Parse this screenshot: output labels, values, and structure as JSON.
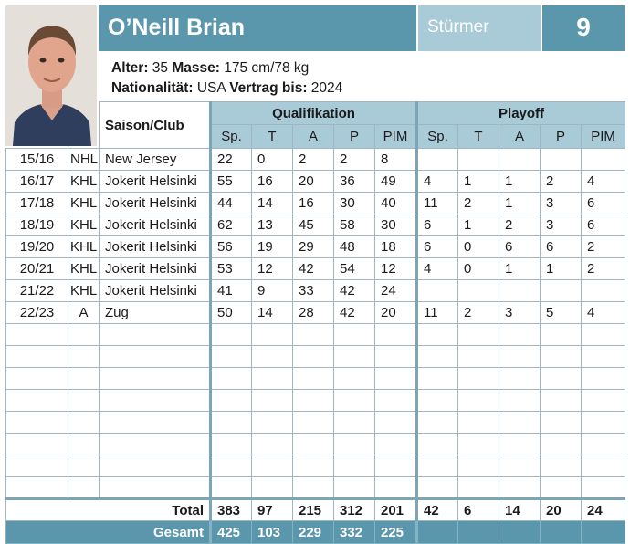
{
  "player": {
    "name": "O’Neill Brian",
    "position": "Stürmer",
    "number": "9",
    "age_label": "Alter:",
    "age": "35",
    "mass_label": "Masse:",
    "mass": "175 cm/78 kg",
    "nationality_label": "Nationalität:",
    "nationality": "USA",
    "contract_label": "Vertrag bis:",
    "contract": "2024"
  },
  "headers": {
    "saison_club": "Saison/Club",
    "qualifikation": "Qualifikation",
    "playoff": "Playoff",
    "cols": [
      "Sp.",
      "T",
      "A",
      "P",
      "PIM"
    ]
  },
  "rows": [
    {
      "season": "15/16",
      "league": "NHL",
      "club": "New Jersey",
      "q": [
        "22",
        "0",
        "2",
        "2",
        "8"
      ],
      "p": [
        "",
        "",
        "",
        "",
        ""
      ]
    },
    {
      "season": "16/17",
      "league": "KHL",
      "club": "Jokerit Helsinki",
      "q": [
        "55",
        "16",
        "20",
        "36",
        "49"
      ],
      "p": [
        "4",
        "1",
        "1",
        "2",
        "4"
      ]
    },
    {
      "season": "17/18",
      "league": "KHL",
      "club": "Jokerit Helsinki",
      "q": [
        "44",
        "14",
        "16",
        "30",
        "40"
      ],
      "p": [
        "11",
        "2",
        "1",
        "3",
        "6"
      ]
    },
    {
      "season": "18/19",
      "league": "KHL",
      "club": "Jokerit Helsinki",
      "q": [
        "62",
        "13",
        "45",
        "58",
        "30"
      ],
      "p": [
        "6",
        "1",
        "2",
        "3",
        "6"
      ]
    },
    {
      "season": "19/20",
      "league": "KHL",
      "club": "Jokerit Helsinki",
      "q": [
        "56",
        "19",
        "29",
        "48",
        "18"
      ],
      "p": [
        "6",
        "0",
        "6",
        "6",
        "2"
      ]
    },
    {
      "season": "20/21",
      "league": "KHL",
      "club": "Jokerit Helsinki",
      "q": [
        "53",
        "12",
        "42",
        "54",
        "12"
      ],
      "p": [
        "4",
        "0",
        "1",
        "1",
        "2"
      ]
    },
    {
      "season": "21/22",
      "league": "KHL",
      "club": "Jokerit Helsinki",
      "q": [
        "41",
        "9",
        "33",
        "42",
        "24"
      ],
      "p": [
        "",
        "",
        "",
        "",
        ""
      ]
    },
    {
      "season": "22/23",
      "league": "A",
      "club": "Zug",
      "q": [
        "50",
        "14",
        "28",
        "42",
        "20"
      ],
      "p": [
        "11",
        "2",
        "3",
        "5",
        "4"
      ]
    }
  ],
  "empty_rows": 8,
  "total": {
    "label": "Total",
    "q": [
      "383",
      "97",
      "215",
      "312",
      "201"
    ],
    "p": [
      "42",
      "6",
      "14",
      "20",
      "24"
    ]
  },
  "gesamt": {
    "label": "Gesamt",
    "q": [
      "425",
      "103",
      "229",
      "332",
      "225"
    ],
    "p": [
      "",
      "",
      "",
      "",
      ""
    ]
  }
}
